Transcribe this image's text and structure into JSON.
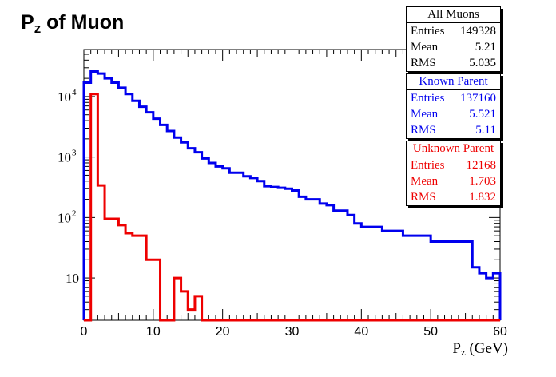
{
  "title": {
    "main": "P",
    "sub": "z",
    "rest": " of Muon"
  },
  "xlabel": {
    "main": "P",
    "sub": "z",
    "rest": " (GeV)"
  },
  "stats": [
    {
      "name": "All Muons",
      "color": "#000000",
      "rows": [
        {
          "k": "Entries",
          "v": "149328"
        },
        {
          "k": "Mean",
          "v": "5.21"
        },
        {
          "k": "RMS",
          "v": "5.035"
        }
      ]
    },
    {
      "name": "Known Parent",
      "color": "#0000ee",
      "rows": [
        {
          "k": "Entries",
          "v": "137160"
        },
        {
          "k": "Mean",
          "v": "5.521"
        },
        {
          "k": "RMS",
          "v": "5.11"
        }
      ]
    },
    {
      "name": "Unknown Parent",
      "color": "#ee0000",
      "rows": [
        {
          "k": "Entries",
          "v": "12168"
        },
        {
          "k": "Mean",
          "v": "1.703"
        },
        {
          "k": "RMS",
          "v": "1.832"
        }
      ]
    }
  ],
  "chart_data": {
    "type": "histogram",
    "xlim": [
      0,
      60
    ],
    "ylim": [
      2,
      60000
    ],
    "yscale": "log",
    "bin_width": 1,
    "xticks": [
      0,
      10,
      20,
      30,
      40,
      50,
      60
    ],
    "xtick_labels": [
      "0",
      "10",
      "20",
      "30",
      "40",
      "50",
      "60"
    ],
    "yticks": [
      10,
      100,
      1000,
      10000
    ],
    "series": [
      {
        "name": "Known Parent",
        "color": "#0000ee",
        "values": [
          17000,
          26000,
          24000,
          20000,
          17000,
          14000,
          11000,
          8500,
          6800,
          5500,
          4300,
          3400,
          2700,
          2100,
          1750,
          1400,
          1200,
          950,
          800,
          700,
          650,
          550,
          550,
          480,
          450,
          400,
          330,
          320,
          310,
          300,
          280,
          220,
          200,
          200,
          170,
          160,
          130,
          130,
          110,
          80,
          70,
          70,
          70,
          60,
          60,
          60,
          50,
          50,
          50,
          50,
          40,
          40,
          40,
          40,
          40,
          40,
          15,
          12,
          10,
          12
        ]
      },
      {
        "name": "Unknown Parent",
        "color": "#ee0000",
        "values": [
          0,
          11000,
          340,
          95,
          95,
          75,
          55,
          50,
          50,
          20,
          20,
          0,
          0,
          10,
          6,
          3,
          5,
          0,
          0,
          0,
          0,
          0,
          0,
          0,
          0,
          0,
          0,
          0,
          0,
          0,
          0,
          0,
          0,
          0,
          0,
          0,
          0,
          0,
          0,
          0,
          0,
          0,
          0,
          0,
          0,
          0,
          0,
          0,
          0,
          0,
          0,
          0,
          0,
          0,
          0,
          0,
          0,
          0,
          0,
          0
        ]
      }
    ]
  }
}
